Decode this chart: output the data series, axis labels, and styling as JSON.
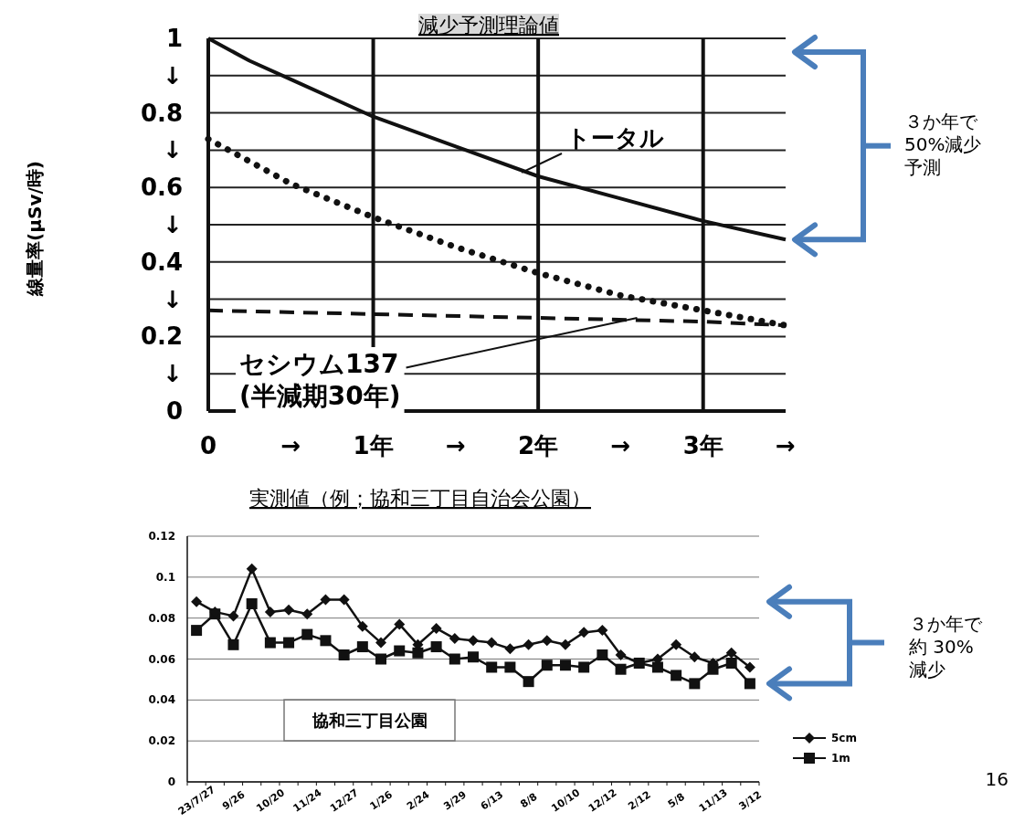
{
  "chart_data": [
    {
      "type": "line",
      "title": "減少予測理論値",
      "ylabel": "線量率(μSv/時)",
      "xlim": [
        0,
        3.5
      ],
      "ylim": [
        0,
        1
      ],
      "xticks": [
        {
          "value": 0,
          "label": "0"
        },
        {
          "value": 0.5,
          "label": "→"
        },
        {
          "value": 1,
          "label": "1年"
        },
        {
          "value": 1.5,
          "label": "→"
        },
        {
          "value": 2,
          "label": "2年"
        },
        {
          "value": 2.5,
          "label": "→"
        },
        {
          "value": 3,
          "label": "3年"
        },
        {
          "value": 3.5,
          "label": "→"
        }
      ],
      "yticks": [
        0,
        {
          "value": 0.1,
          "label": "↓"
        },
        0.2,
        {
          "value": 0.3,
          "label": "↓"
        },
        0.4,
        {
          "value": 0.5,
          "label": "↓"
        },
        0.6,
        {
          "value": 0.7,
          "label": "↓"
        },
        0.8,
        {
          "value": 0.9,
          "label": "↓"
        },
        1
      ],
      "grid": "y",
      "ref_lines": [
        {
          "axis": "x",
          "value": 1
        },
        {
          "axis": "x",
          "value": 2
        },
        {
          "axis": "x",
          "value": 3
        }
      ],
      "series": [
        {
          "color": "#111111",
          "line_style": "solid",
          "x": [
            0,
            0.25,
            0.5,
            0.75,
            1,
            1.5,
            2,
            2.5,
            3,
            3.5
          ],
          "values": [
            1,
            0.94,
            0.89,
            0.84,
            0.79,
            0.71,
            0.63,
            0.57,
            0.51,
            0.46
          ]
        },
        {
          "color": "#111111",
          "line_style": "dotted",
          "x": [
            0,
            0.5,
            1,
            1.5,
            2,
            2.5,
            3,
            3.5
          ],
          "values": [
            0.73,
            0.61,
            0.52,
            0.44,
            0.37,
            0.31,
            0.27,
            0.23
          ]
        },
        {
          "color": "#111111",
          "line_style": "dashed",
          "x": [
            0,
            1,
            2,
            3,
            3.5
          ],
          "values": [
            0.27,
            0.26,
            0.25,
            0.24,
            0.23
          ]
        }
      ],
      "annotations": [
        {
          "text": "トータル",
          "x": 1.9,
          "y": 0.64
        },
        {
          "text": "セシウム137\n(半減期30年)",
          "x": 2.6,
          "y": 0.25
        },
        "３か年で50%減少予測"
      ]
    },
    {
      "type": "line",
      "title": "実測値（例；協和三丁目自治会公園）",
      "categories": [
        "23/7/27",
        null,
        "9/26",
        null,
        "10/20",
        null,
        "11/24",
        null,
        "12/27",
        null,
        "1/26",
        null,
        "2/24",
        null,
        "3/29",
        null,
        "6/13",
        null,
        "8/8",
        null,
        "10/10",
        null,
        "12/12",
        null,
        "2/12",
        null,
        "5/8",
        null,
        "11/13",
        null,
        "3/12"
      ],
      "ylim": [
        0,
        0.12
      ],
      "yticks": [
        0,
        0.02,
        0.04,
        0.06,
        0.08,
        0.1,
        0.12
      ],
      "grid": "y",
      "legend": "right",
      "series": [
        {
          "name": "5cm",
          "color": "#111111",
          "marker": "diamond",
          "values": [
            0.088,
            0.083,
            0.081,
            0.104,
            0.083,
            0.084,
            0.082,
            0.089,
            0.089,
            0.076,
            0.068,
            0.077,
            0.067,
            0.075,
            0.07,
            0.069,
            0.068,
            0.065,
            0.067,
            0.069,
            0.067,
            0.073,
            0.074,
            0.062,
            0.058,
            0.06,
            0.067,
            0.061,
            0.058,
            0.063,
            0.056
          ]
        },
        {
          "name": "1m",
          "color": "#111111",
          "marker": "square",
          "values": [
            0.074,
            0.082,
            0.067,
            0.087,
            0.068,
            0.068,
            0.072,
            0.069,
            0.062,
            0.066,
            0.06,
            0.064,
            0.063,
            0.066,
            0.06,
            0.061,
            0.056,
            0.056,
            0.049,
            0.057,
            0.057,
            0.056,
            0.062,
            0.055,
            0.058,
            0.056,
            0.052,
            0.048,
            0.055,
            0.058,
            0.048
          ]
        }
      ],
      "annotations": [
        "協和三丁目公園",
        "３か年で約 30%減少",
        "16"
      ]
    }
  ]
}
